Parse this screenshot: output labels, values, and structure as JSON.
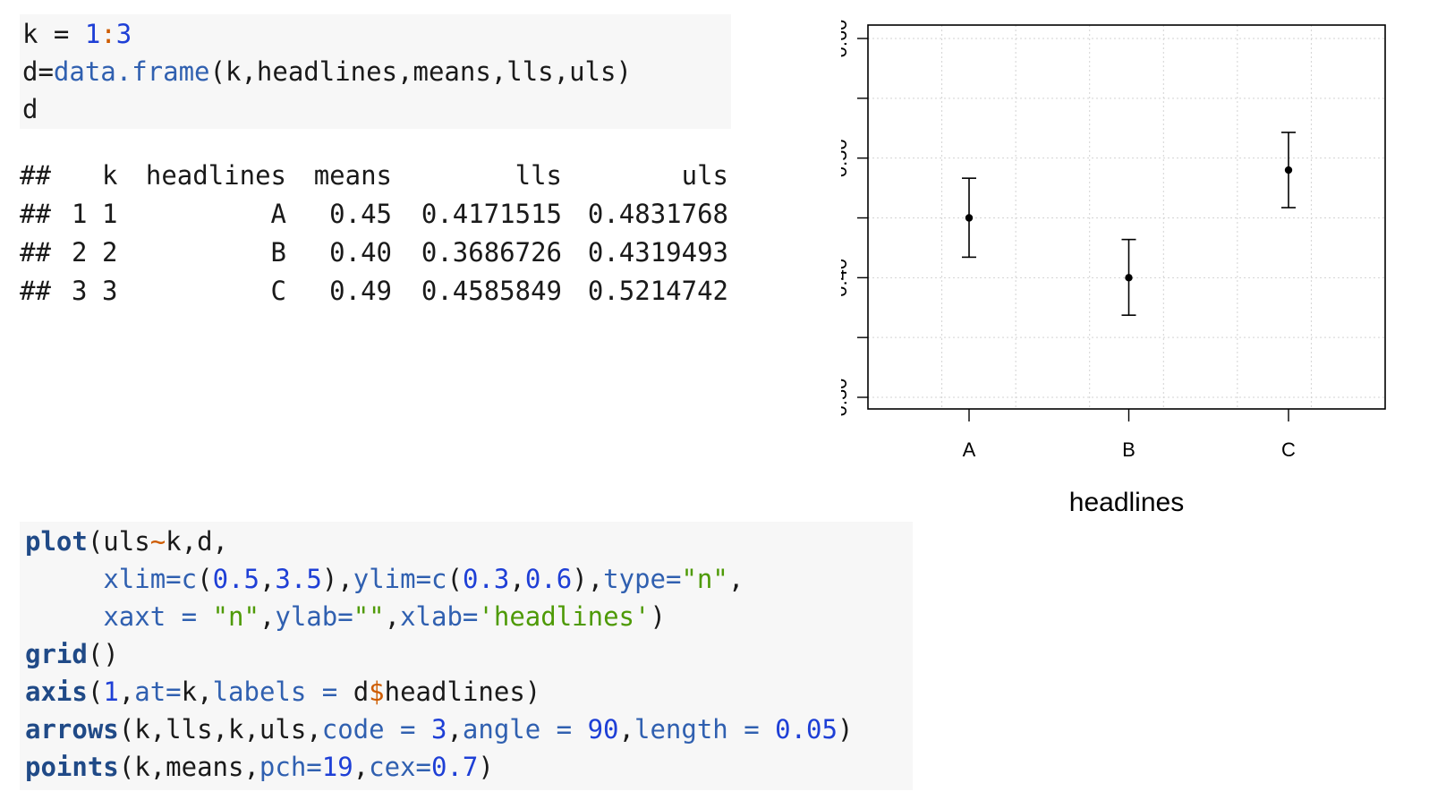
{
  "code_block_1": {
    "lines": [
      [
        {
          "t": "k = ",
          "c": "plain"
        },
        {
          "t": "1",
          "c": "num"
        },
        {
          "t": ":",
          "c": "op"
        },
        {
          "t": "3",
          "c": "num"
        }
      ],
      [
        {
          "t": "d=",
          "c": "plain"
        },
        {
          "t": "data.frame",
          "c": "arg"
        },
        {
          "t": "(k,headlines,means,lls,uls)",
          "c": "plain"
        }
      ],
      [
        {
          "t": "d",
          "c": "plain"
        }
      ]
    ]
  },
  "output_table": {
    "prefix": "##",
    "header": [
      "",
      "k",
      "headlines",
      "means",
      "lls",
      "uls"
    ],
    "rows": [
      [
        "1",
        "1",
        "A",
        "0.45",
        "0.4171515",
        "0.4831768"
      ],
      [
        "2",
        "2",
        "B",
        "0.40",
        "0.3686726",
        "0.4319493"
      ],
      [
        "3",
        "3",
        "C",
        "0.49",
        "0.4585849",
        "0.5214742"
      ]
    ]
  },
  "code_block_2": {
    "lines": [
      [
        {
          "t": "plot",
          "c": "fn"
        },
        {
          "t": "(uls",
          "c": "plain"
        },
        {
          "t": "~",
          "c": "op"
        },
        {
          "t": "k,d,",
          "c": "plain"
        }
      ],
      [
        {
          "t": "     ",
          "c": "plain"
        },
        {
          "t": "xlim=",
          "c": "arg"
        },
        {
          "t": "c",
          "c": "arg"
        },
        {
          "t": "(",
          "c": "plain"
        },
        {
          "t": "0.5",
          "c": "num"
        },
        {
          "t": ",",
          "c": "plain"
        },
        {
          "t": "3.5",
          "c": "num"
        },
        {
          "t": "),",
          "c": "plain"
        },
        {
          "t": "ylim=",
          "c": "arg"
        },
        {
          "t": "c",
          "c": "arg"
        },
        {
          "t": "(",
          "c": "plain"
        },
        {
          "t": "0.3",
          "c": "num"
        },
        {
          "t": ",",
          "c": "plain"
        },
        {
          "t": "0.6",
          "c": "num"
        },
        {
          "t": "),",
          "c": "plain"
        },
        {
          "t": "type=",
          "c": "arg"
        },
        {
          "t": "\"n\"",
          "c": "str"
        },
        {
          "t": ",",
          "c": "plain"
        }
      ],
      [
        {
          "t": "     ",
          "c": "plain"
        },
        {
          "t": "xaxt = ",
          "c": "arg"
        },
        {
          "t": "\"n\"",
          "c": "str"
        },
        {
          "t": ",",
          "c": "plain"
        },
        {
          "t": "ylab=",
          "c": "arg"
        },
        {
          "t": "\"\"",
          "c": "str"
        },
        {
          "t": ",",
          "c": "plain"
        },
        {
          "t": "xlab=",
          "c": "arg"
        },
        {
          "t": "'headlines'",
          "c": "str"
        },
        {
          "t": ")",
          "c": "plain"
        }
      ],
      [
        {
          "t": "grid",
          "c": "fn"
        },
        {
          "t": "()",
          "c": "plain"
        }
      ],
      [
        {
          "t": "axis",
          "c": "fn"
        },
        {
          "t": "(",
          "c": "plain"
        },
        {
          "t": "1",
          "c": "num"
        },
        {
          "t": ",",
          "c": "plain"
        },
        {
          "t": "at=",
          "c": "arg"
        },
        {
          "t": "k,",
          "c": "plain"
        },
        {
          "t": "labels = ",
          "c": "arg"
        },
        {
          "t": "d",
          "c": "plain"
        },
        {
          "t": "$",
          "c": "op"
        },
        {
          "t": "headlines)",
          "c": "plain"
        }
      ],
      [
        {
          "t": "arrows",
          "c": "fn"
        },
        {
          "t": "(k,lls,k,uls,",
          "c": "plain"
        },
        {
          "t": "code = ",
          "c": "arg"
        },
        {
          "t": "3",
          "c": "num"
        },
        {
          "t": ",",
          "c": "plain"
        },
        {
          "t": "angle = ",
          "c": "arg"
        },
        {
          "t": "90",
          "c": "num"
        },
        {
          "t": ",",
          "c": "plain"
        },
        {
          "t": "length = ",
          "c": "arg"
        },
        {
          "t": "0.05",
          "c": "num"
        },
        {
          "t": ")",
          "c": "plain"
        }
      ],
      [
        {
          "t": "points",
          "c": "fn"
        },
        {
          "t": "(k,means,",
          "c": "plain"
        },
        {
          "t": "pch=",
          "c": "arg"
        },
        {
          "t": "19",
          "c": "num"
        },
        {
          "t": ",",
          "c": "plain"
        },
        {
          "t": "cex=",
          "c": "arg"
        },
        {
          "t": "0.7",
          "c": "num"
        },
        {
          "t": ")",
          "c": "plain"
        }
      ]
    ]
  },
  "colors": {
    "code_bg": "#f7f7f7",
    "function": "#204a87",
    "number": "#1e3fd6",
    "string": "#4e9a06",
    "argument": "#3060b0",
    "operator": "#ce5c00",
    "grid": "#d3d3d3"
  },
  "chart_data": {
    "type": "scatter",
    "title": "",
    "xlabel": "headlines",
    "ylabel": "",
    "xlim": [
      0.5,
      3.5
    ],
    "ylim": [
      0.3,
      0.6
    ],
    "grid": true,
    "x": [
      1,
      2,
      3
    ],
    "x_tick_labels": [
      "A",
      "B",
      "C"
    ],
    "y_ticks": [
      0.3,
      0.35,
      0.4,
      0.45,
      0.5,
      0.55,
      0.6
    ],
    "y_tick_labels": [
      "0.30",
      "",
      "0.40",
      "",
      "0.50",
      "",
      "0.60"
    ],
    "means": [
      0.45,
      0.4,
      0.49
    ],
    "lower": [
      0.4171515,
      0.3686726,
      0.4585849
    ],
    "upper": [
      0.4831768,
      0.4319493,
      0.5214742
    ]
  }
}
